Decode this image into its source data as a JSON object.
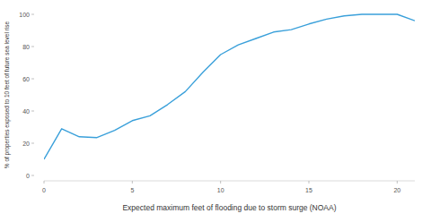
{
  "chart_data": {
    "type": "line",
    "x_label": "Expected maximum feet of flooding due to storm surge (NOAA)",
    "y_label": "% of properties exposed to 10 feet of future sea level rise",
    "x": [
      0,
      1,
      2,
      3,
      4,
      5,
      6,
      7,
      8,
      9,
      10,
      11,
      12,
      13,
      14,
      15,
      16,
      17,
      18,
      19,
      20,
      21
    ],
    "series": [
      {
        "name": null,
        "color": "#3aa0da",
        "values": [
          10,
          29,
          24,
          23.5,
          28,
          34,
          37,
          44,
          52,
          64,
          75,
          81,
          85,
          89,
          90.5,
          94,
          97,
          99,
          100,
          100,
          100,
          96
        ]
      }
    ],
    "xlim": [
      0,
      21
    ],
    "xticks": [
      0,
      5,
      10,
      15,
      20
    ],
    "ylim": [
      0,
      100
    ],
    "yticks": [
      0,
      20,
      40,
      60,
      80,
      100
    ],
    "grid": false
  }
}
